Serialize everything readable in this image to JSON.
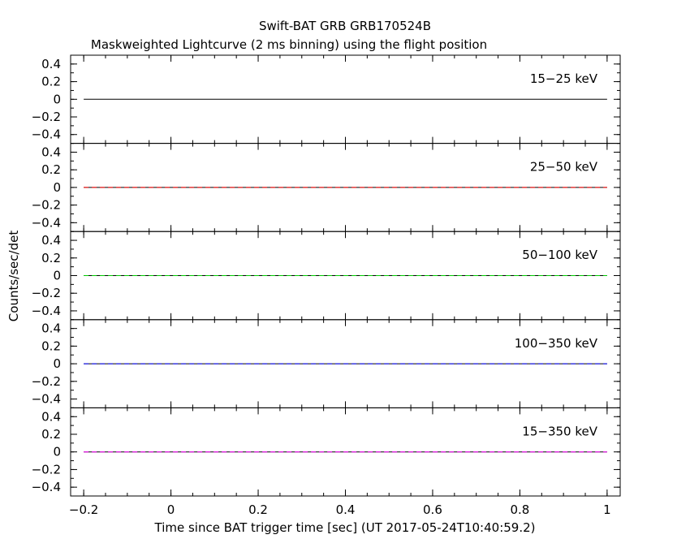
{
  "chart_data": {
    "type": "line",
    "title": "Swift-BAT GRB GRB170524B",
    "subtitle": "Maskweighted Lightcurve (2 ms binning) using the flight position",
    "xlabel": "Time since BAT trigger time [sec] (UT 2017-05-24T10:40:59.2)",
    "ylabel": "Counts/sec/det",
    "xlim": [
      -0.23,
      1.03
    ],
    "ylim": [
      -0.5,
      0.5
    ],
    "x_ticks": [
      -0.2,
      0,
      0.2,
      0.4,
      0.6,
      0.8,
      1
    ],
    "x_tick_labels": [
      "−0.2",
      "0",
      "0.2",
      "0.4",
      "0.6",
      "0.8",
      "1"
    ],
    "y_ticks": [
      0.4,
      0.2,
      0,
      -0.2,
      -0.4
    ],
    "y_tick_labels": [
      "0.4",
      "0.2",
      "0",
      "−0.2",
      "−0.4"
    ],
    "grid": false,
    "panels": [
      {
        "label": "15−25 keV",
        "color": "#000000",
        "x": [
          -0.2,
          1.0
        ],
        "y": [
          0,
          0
        ]
      },
      {
        "label": "25−50 keV",
        "color": "#ff0000",
        "x": [
          -0.2,
          1.0
        ],
        "y": [
          0,
          0
        ]
      },
      {
        "label": "50−100 keV",
        "color": "#00cc00",
        "x": [
          -0.2,
          1.0
        ],
        "y": [
          0,
          0
        ]
      },
      {
        "label": "100−350 keV",
        "color": "#0000ff",
        "x": [
          -0.2,
          1.0
        ],
        "y": [
          0,
          0
        ]
      },
      {
        "label": "15−350 keV",
        "color": "#ff00ff",
        "x": [
          -0.2,
          1.0
        ],
        "y": [
          0,
          0
        ]
      }
    ]
  }
}
